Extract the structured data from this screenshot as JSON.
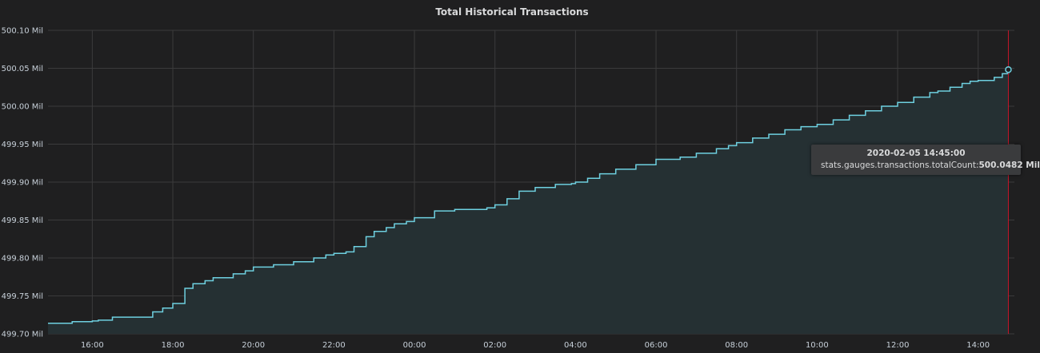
{
  "panel": {
    "title": "Total Historical Transactions"
  },
  "tooltip": {
    "time": "2020-02-05 14:45:00",
    "series": "stats.gauges.transactions.totalCount:",
    "value": "500.0482 Mil"
  },
  "colors": {
    "background": "#1f1f20",
    "grid": "#3b3b3c",
    "line": "#6ed0e0",
    "fill": "#253033",
    "crosshair": "#c4162a"
  },
  "chart_data": {
    "type": "area",
    "title": "Total Historical Transactions",
    "xlabel": "",
    "ylabel": "",
    "units": "Mil",
    "ylim": [
      499.7,
      500.1
    ],
    "y_ticks": [
      499.7,
      499.75,
      499.8,
      499.85,
      499.9,
      499.95,
      500.0,
      500.05,
      500.1
    ],
    "y_tick_labels": [
      "499.70 Mil",
      "499.75 Mil",
      "499.80 Mil",
      "499.85 Mil",
      "499.90 Mil",
      "499.95 Mil",
      "500.00 Mil",
      "500.05 Mil",
      "500.10 Mil"
    ],
    "xlim_hours": [
      14.9,
      38.9
    ],
    "x_ticks": [
      16,
      18,
      20,
      22,
      24,
      26,
      28,
      30,
      32,
      34,
      36,
      38
    ],
    "x_tick_labels": [
      "16:00",
      "18:00",
      "20:00",
      "22:00",
      "00:00",
      "02:00",
      "04:00",
      "06:00",
      "08:00",
      "10:00",
      "12:00",
      "14:00"
    ],
    "grid": true,
    "legend": "none",
    "series": [
      {
        "x": [
          14.9,
          15.5,
          16.0,
          16.15,
          16.5,
          17.0,
          17.5,
          17.75,
          18.0,
          18.3,
          18.5,
          18.8,
          19.0,
          19.5,
          19.8,
          20.0,
          20.5,
          21.0,
          21.2,
          21.5,
          21.8,
          22.0,
          22.3,
          22.5,
          22.8,
          23.0,
          23.3,
          23.5,
          23.8,
          24.0,
          24.5,
          25.0,
          25.5,
          25.8,
          26.0,
          26.3,
          26.6,
          27.0,
          27.5,
          27.9,
          28.0,
          28.3,
          28.6,
          29.0,
          29.5,
          30.0,
          30.6,
          31.0,
          31.5,
          31.8,
          32.0,
          32.4,
          32.8,
          33.2,
          33.6,
          34.0,
          34.4,
          34.8,
          35.2,
          35.6,
          36.0,
          36.4,
          36.8,
          37.0,
          37.3,
          37.6,
          37.8,
          38.0,
          38.3,
          38.4,
          38.6,
          38.75
        ],
        "y": [
          499.714,
          499.716,
          499.717,
          499.718,
          499.722,
          499.722,
          499.729,
          499.734,
          499.74,
          499.76,
          499.766,
          499.77,
          499.774,
          499.779,
          499.783,
          499.788,
          499.791,
          499.795,
          499.795,
          499.8,
          499.804,
          499.806,
          499.808,
          499.815,
          499.828,
          499.835,
          499.84,
          499.845,
          499.848,
          499.853,
          499.862,
          499.864,
          499.864,
          499.866,
          499.87,
          499.878,
          499.888,
          499.893,
          499.897,
          499.898,
          499.9,
          499.905,
          499.911,
          499.917,
          499.923,
          499.93,
          499.933,
          499.938,
          499.944,
          499.948,
          499.952,
          499.958,
          499.963,
          499.969,
          499.973,
          499.976,
          499.982,
          499.988,
          499.994,
          500.0,
          500.005,
          500.012,
          500.018,
          500.02,
          500.025,
          500.03,
          500.033,
          500.034,
          500.034,
          500.038,
          500.043,
          500.0482
        ]
      }
    ],
    "hover_point": {
      "x": 38.75,
      "y": 500.0482
    }
  }
}
